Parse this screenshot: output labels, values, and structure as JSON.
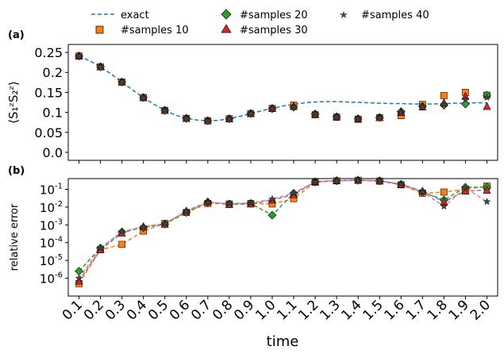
{
  "chart_data": [
    {
      "type": "line",
      "panel_label": "(a)",
      "ylabel": "⟨S₁ᶻS₂ᶻ⟩",
      "ylim": [
        -0.02,
        0.27
      ],
      "yticks": [
        0.0,
        0.05,
        0.1,
        0.15,
        0.2,
        0.25
      ],
      "ytick_labels": [
        "0.0",
        "0.05",
        "0.1",
        "0.15",
        "0.2",
        "0.25"
      ],
      "exact": {
        "name": "exact",
        "x": [
          0.1,
          0.15,
          0.2,
          0.25,
          0.3,
          0.35,
          0.4,
          0.45,
          0.5,
          0.55,
          0.6,
          0.65,
          0.7,
          0.75,
          0.8,
          0.85,
          0.9,
          0.95,
          1.0,
          1.05,
          1.1,
          1.15,
          1.2,
          1.25,
          1.3,
          1.35,
          1.4,
          1.45,
          1.5,
          1.55,
          1.6,
          1.65,
          1.7,
          1.75,
          1.8,
          1.85,
          1.9,
          1.95,
          2.0
        ],
        "y": [
          0.241,
          0.229,
          0.214,
          0.196,
          0.176,
          0.156,
          0.137,
          0.12,
          0.105,
          0.093,
          0.085,
          0.081,
          0.079,
          0.08,
          0.084,
          0.09,
          0.097,
          0.104,
          0.11,
          0.116,
          0.12,
          0.124,
          0.126,
          0.127,
          0.127,
          0.126,
          0.125,
          0.124,
          0.123,
          0.122,
          0.122,
          0.121,
          0.121,
          0.121,
          0.122,
          0.123,
          0.123,
          0.124,
          0.124
        ]
      },
      "series": [
        {
          "name": "#samples 10",
          "marker": "square",
          "color": "#ff7f0e",
          "values": [
            0.241,
            0.214,
            0.176,
            0.137,
            0.105,
            0.085,
            0.079,
            0.084,
            0.097,
            0.11,
            0.118,
            0.094,
            0.088,
            0.083,
            0.087,
            0.092,
            0.12,
            0.142,
            0.15,
            0.143
          ]
        },
        {
          "name": "#samples 20",
          "marker": "diamond",
          "color": "#2ca02c",
          "values": [
            0.241,
            0.214,
            0.176,
            0.137,
            0.105,
            0.085,
            0.079,
            0.084,
            0.097,
            0.109,
            0.113,
            0.096,
            0.089,
            0.084,
            0.087,
            0.102,
            0.115,
            0.118,
            0.121,
            0.143
          ]
        },
        {
          "name": "#samples 30",
          "marker": "triangle",
          "color": "#d62728",
          "values": [
            0.241,
            0.214,
            0.176,
            0.137,
            0.105,
            0.085,
            0.079,
            0.084,
            0.097,
            0.11,
            0.115,
            0.096,
            0.089,
            0.084,
            0.087,
            0.1,
            0.114,
            0.124,
            0.14,
            0.115
          ]
        },
        {
          "name": "#samples 40",
          "marker": "star",
          "color": "#444444",
          "values": [
            0.241,
            0.214,
            0.176,
            0.137,
            0.105,
            0.085,
            0.079,
            0.084,
            0.097,
            0.11,
            0.114,
            0.097,
            0.089,
            0.084,
            0.087,
            0.1,
            0.113,
            0.12,
            0.132,
            0.137
          ]
        }
      ]
    },
    {
      "type": "line",
      "panel_label": "(b)",
      "ylabel": "relative error",
      "yscale": "log",
      "ylim": [
        1e-07,
        0.4
      ],
      "yticks": [
        1e-06,
        1e-05,
        0.0001,
        0.001,
        0.01,
        0.1
      ],
      "ytick_labels": [
        {
          "base": "10",
          "exp": "-6"
        },
        {
          "base": "10",
          "exp": "-5"
        },
        {
          "base": "10",
          "exp": "-4"
        },
        {
          "base": "10",
          "exp": "-3"
        },
        {
          "base": "10",
          "exp": "-2"
        },
        {
          "base": "10",
          "exp": "-1"
        }
      ],
      "series": [
        {
          "name": "#samples 10",
          "marker": "square",
          "color": "#ff7f0e",
          "values": [
            5e-07,
            4e-05,
            8e-05,
            0.00045,
            0.0012,
            0.005,
            0.016,
            0.015,
            0.016,
            0.015,
            0.03,
            0.25,
            0.3,
            0.32,
            0.29,
            0.18,
            0.06,
            0.07,
            0.1,
            0.15
          ]
        },
        {
          "name": "#samples 20",
          "marker": "diamond",
          "color": "#2ca02c",
          "values": [
            2.5e-06,
            5e-05,
            0.0004,
            0.0007,
            0.0011,
            0.005,
            0.019,
            0.015,
            0.016,
            0.0035,
            0.06,
            0.26,
            0.3,
            0.32,
            0.3,
            0.19,
            0.07,
            0.025,
            0.13,
            0.13
          ]
        },
        {
          "name": "#samples 30",
          "marker": "triangle",
          "color": "#d62728",
          "values": [
            7e-07,
            4e-05,
            0.00035,
            0.0008,
            0.0011,
            0.006,
            0.02,
            0.014,
            0.015,
            0.025,
            0.05,
            0.27,
            0.31,
            0.33,
            0.3,
            0.19,
            0.08,
            0.02,
            0.08,
            0.09
          ]
        },
        {
          "name": "#samples 40",
          "marker": "star",
          "color": "#444444",
          "values": [
            1e-06,
            5e-05,
            0.00042,
            0.0008,
            0.0012,
            0.006,
            0.018,
            0.016,
            0.017,
            0.028,
            0.06,
            0.26,
            0.3,
            0.33,
            0.31,
            0.2,
            0.07,
            0.011,
            0.12,
            0.02
          ]
        }
      ],
      "error_line_colors": [
        "#ff7f0e",
        "#2ca02c",
        "#7f7f7f",
        "#e377c2"
      ]
    }
  ],
  "x": [
    0.1,
    0.2,
    0.3,
    0.4,
    0.5,
    0.6,
    0.7,
    0.8,
    0.9,
    1.0,
    1.1,
    1.2,
    1.3,
    1.4,
    1.5,
    1.6,
    1.7,
    1.8,
    1.9,
    2.0
  ],
  "xtick_labels": [
    "0.1",
    "0.2",
    "0.3",
    "0.4",
    "0.5",
    "0.6",
    "0.7",
    "0.8",
    "0.9",
    "1.0",
    "1.1",
    "1.2",
    "1.3",
    "1.4",
    "1.5",
    "1.6",
    "1.7",
    "1.8",
    "1.9",
    "2.0"
  ],
  "xlim": [
    0.05,
    2.05
  ],
  "xlabel": "time",
  "legend": {
    "placement": "top",
    "entries": [
      {
        "label": "exact",
        "kind": "dashed-line",
        "color": "#1f77b4"
      },
      {
        "label": "#samples 20",
        "kind": "diamond",
        "color": "#2ca02c"
      },
      {
        "label": "#samples 40",
        "kind": "star",
        "color": "#444444"
      },
      {
        "label": "#samples 10",
        "kind": "square",
        "color": "#ff7f0e"
      },
      {
        "label": "#samples 30",
        "kind": "triangle",
        "color": "#d62728"
      }
    ]
  }
}
